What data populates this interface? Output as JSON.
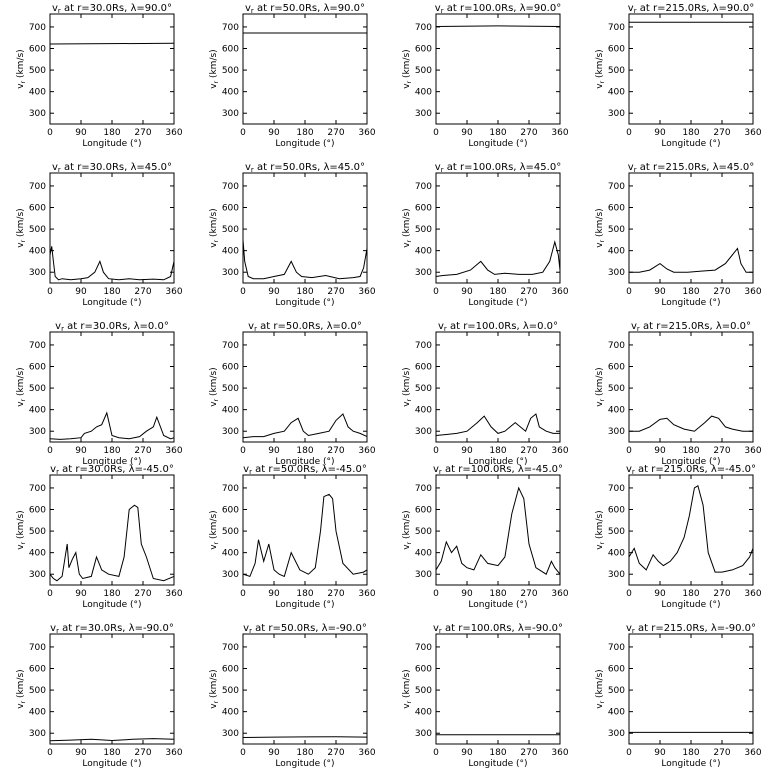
{
  "figure": {
    "panel_title_template": "v_r at r={r}Rs, λ={lat}°",
    "xlabel": "Longitude (°)",
    "ylabel": "v_r (km/s)",
    "xlim": [
      0,
      360
    ],
    "ylim": [
      250,
      760
    ],
    "xticks": [
      0,
      90,
      180,
      270,
      360
    ],
    "yticks": [
      300,
      400,
      500,
      600,
      700
    ],
    "rows_latitude_deg": [
      "90.0",
      "45.0",
      "0.0",
      "-45.0",
      "-90.0"
    ],
    "cols_radius_rs": [
      "30.0",
      "50.0",
      "100.0",
      "215.0"
    ]
  },
  "chart_data": [
    {
      "type": "line",
      "title": "vr at r=30.0Rs, λ=90.0°",
      "xlabel": "Longitude (°)",
      "ylabel": "vr (km/s)",
      "xlim": [
        0,
        360
      ],
      "ylim": [
        250,
        760
      ],
      "x": [
        0,
        360
      ],
      "y": [
        621,
        624
      ]
    },
    {
      "type": "line",
      "title": "vr at r=50.0Rs, λ=90.0°",
      "xlabel": "Longitude (°)",
      "ylabel": "vr (km/s)",
      "xlim": [
        0,
        360
      ],
      "ylim": [
        250,
        760
      ],
      "x": [
        0,
        360
      ],
      "y": [
        672,
        672
      ]
    },
    {
      "type": "line",
      "title": "vr at r=100.0Rs, λ=90.0°",
      "xlabel": "Longitude (°)",
      "ylabel": "vr (km/s)",
      "xlim": [
        0,
        360
      ],
      "ylim": [
        250,
        760
      ],
      "x": [
        0,
        180,
        360
      ],
      "y": [
        702,
        705,
        702
      ]
    },
    {
      "type": "line",
      "title": "vr at r=215.0Rs, λ=90.0°",
      "xlabel": "Longitude (°)",
      "ylabel": "vr (km/s)",
      "xlim": [
        0,
        360
      ],
      "ylim": [
        250,
        760
      ],
      "x": [
        0,
        360
      ],
      "y": [
        722,
        722
      ]
    },
    {
      "type": "line",
      "title": "vr at r=30.0Rs, λ=45.0°",
      "xlabel": "Longitude (°)",
      "ylabel": "vr (km/s)",
      "xlim": [
        0,
        360
      ],
      "ylim": [
        250,
        760
      ],
      "x": [
        0,
        5,
        10,
        15,
        25,
        35,
        60,
        90,
        110,
        130,
        145,
        155,
        170,
        200,
        230,
        260,
        300,
        330,
        350,
        360
      ],
      "y": [
        380,
        420,
        350,
        280,
        265,
        270,
        265,
        270,
        275,
        300,
        350,
        300,
        270,
        265,
        270,
        265,
        268,
        265,
        280,
        350
      ]
    },
    {
      "type": "line",
      "title": "vr at r=50.0Rs, λ=45.0°",
      "xlabel": "Longitude (°)",
      "ylabel": "vr (km/s)",
      "xlim": [
        0,
        360
      ],
      "ylim": [
        250,
        760
      ],
      "x": [
        0,
        5,
        15,
        30,
        60,
        90,
        120,
        140,
        155,
        170,
        200,
        240,
        280,
        320,
        340,
        350,
        360
      ],
      "y": [
        450,
        350,
        280,
        270,
        270,
        280,
        290,
        350,
        300,
        280,
        275,
        285,
        270,
        275,
        280,
        320,
        410
      ]
    },
    {
      "type": "line",
      "title": "vr at r=100.0Rs, λ=45.0°",
      "xlabel": "Longitude (°)",
      "ylabel": "vr (km/s)",
      "xlim": [
        0,
        360
      ],
      "ylim": [
        250,
        760
      ],
      "x": [
        0,
        20,
        60,
        100,
        130,
        150,
        170,
        200,
        240,
        280,
        310,
        330,
        345,
        355,
        360
      ],
      "y": [
        280,
        285,
        290,
        310,
        350,
        310,
        290,
        295,
        290,
        290,
        300,
        350,
        440,
        380,
        310
      ]
    },
    {
      "type": "line",
      "title": "vr at r=215.0Rs, λ=45.0°",
      "xlabel": "Longitude (°)",
      "ylabel": "vr (km/s)",
      "xlim": [
        0,
        360
      ],
      "ylim": [
        250,
        760
      ],
      "x": [
        0,
        30,
        60,
        90,
        110,
        130,
        170,
        210,
        250,
        280,
        300,
        315,
        325,
        340,
        360
      ],
      "y": [
        300,
        300,
        310,
        340,
        315,
        300,
        300,
        305,
        310,
        340,
        380,
        410,
        340,
        300,
        300
      ]
    },
    {
      "type": "line",
      "title": "vr at r=30.0Rs, λ=0.0°",
      "xlabel": "Longitude (°)",
      "ylabel": "vr (km/s)",
      "xlim": [
        0,
        360
      ],
      "ylim": [
        250,
        760
      ],
      "x": [
        0,
        30,
        60,
        90,
        100,
        120,
        135,
        150,
        165,
        180,
        200,
        230,
        260,
        280,
        300,
        310,
        330,
        350,
        360
      ],
      "y": [
        265,
        262,
        265,
        270,
        290,
        300,
        320,
        330,
        385,
        280,
        270,
        265,
        275,
        300,
        320,
        365,
        280,
        265,
        270
      ]
    },
    {
      "type": "line",
      "title": "vr at r=50.0Rs, λ=0.0°",
      "xlabel": "Longitude (°)",
      "ylabel": "vr (km/s)",
      "xlim": [
        0,
        360
      ],
      "ylim": [
        250,
        760
      ],
      "x": [
        0,
        30,
        60,
        90,
        120,
        140,
        160,
        175,
        190,
        220,
        250,
        270,
        290,
        305,
        320,
        340,
        360
      ],
      "y": [
        270,
        275,
        275,
        290,
        300,
        340,
        360,
        300,
        280,
        290,
        300,
        350,
        380,
        320,
        300,
        290,
        275
      ]
    },
    {
      "type": "line",
      "title": "vr at r=100.0Rs, λ=0.0°",
      "xlabel": "Longitude (°)",
      "ylabel": "vr (km/s)",
      "xlim": [
        0,
        360
      ],
      "ylim": [
        250,
        760
      ],
      "x": [
        0,
        30,
        60,
        90,
        120,
        140,
        160,
        180,
        200,
        230,
        260,
        275,
        290,
        300,
        320,
        340,
        360
      ],
      "y": [
        280,
        285,
        290,
        300,
        340,
        370,
        320,
        290,
        300,
        340,
        300,
        360,
        380,
        320,
        300,
        290,
        290
      ]
    },
    {
      "type": "line",
      "title": "vr at r=215.0Rs, λ=0.0°",
      "xlabel": "Longitude (°)",
      "ylabel": "vr (km/s)",
      "xlim": [
        0,
        360
      ],
      "ylim": [
        250,
        760
      ],
      "x": [
        0,
        30,
        60,
        90,
        110,
        130,
        160,
        190,
        220,
        240,
        260,
        280,
        300,
        330,
        360
      ],
      "y": [
        300,
        300,
        320,
        355,
        360,
        330,
        310,
        300,
        340,
        370,
        360,
        320,
        310,
        300,
        300
      ]
    },
    {
      "type": "line",
      "title": "vr at r=30.0Rs, λ=-45.0°",
      "xlabel": "Longitude (°)",
      "ylabel": "vr (km/s)",
      "xlim": [
        0,
        360
      ],
      "ylim": [
        250,
        760
      ],
      "x": [
        0,
        10,
        20,
        35,
        50,
        55,
        65,
        75,
        85,
        95,
        120,
        135,
        150,
        170,
        200,
        215,
        230,
        245,
        255,
        265,
        280,
        300,
        330,
        360
      ],
      "y": [
        300,
        280,
        270,
        290,
        440,
        330,
        370,
        400,
        300,
        280,
        290,
        380,
        320,
        300,
        290,
        380,
        600,
        620,
        610,
        440,
        380,
        280,
        270,
        290
      ]
    },
    {
      "type": "line",
      "title": "vr at r=50.0Rs, λ=-45.0°",
      "xlabel": "Longitude (°)",
      "ylabel": "vr (km/s)",
      "xlim": [
        0,
        360
      ],
      "ylim": [
        250,
        760
      ],
      "x": [
        0,
        20,
        35,
        45,
        60,
        75,
        90,
        105,
        120,
        140,
        165,
        190,
        210,
        225,
        235,
        250,
        260,
        270,
        290,
        320,
        350,
        360
      ],
      "y": [
        300,
        290,
        350,
        460,
        360,
        440,
        320,
        300,
        290,
        400,
        320,
        300,
        330,
        500,
        660,
        670,
        650,
        500,
        350,
        300,
        310,
        320
      ]
    },
    {
      "type": "line",
      "title": "vr at r=100.0Rs, λ=-45.0°",
      "xlabel": "Longitude (°)",
      "ylabel": "vr (km/s)",
      "xlim": [
        0,
        360
      ],
      "ylim": [
        250,
        760
      ],
      "x": [
        0,
        15,
        30,
        45,
        60,
        75,
        90,
        110,
        130,
        150,
        180,
        200,
        220,
        240,
        255,
        270,
        290,
        320,
        335,
        345,
        360
      ],
      "y": [
        320,
        360,
        450,
        400,
        430,
        350,
        330,
        320,
        390,
        350,
        340,
        380,
        580,
        700,
        650,
        440,
        330,
        300,
        360,
        330,
        300
      ]
    },
    {
      "type": "line",
      "title": "vr at r=215.0Rs, λ=-45.0°",
      "xlabel": "Longitude (°)",
      "ylabel": "vr (km/s)",
      "xlim": [
        0,
        360
      ],
      "ylim": [
        250,
        760
      ],
      "x": [
        0,
        15,
        30,
        50,
        70,
        85,
        100,
        120,
        140,
        160,
        175,
        190,
        200,
        215,
        230,
        250,
        270,
        300,
        330,
        350,
        360
      ],
      "y": [
        380,
        420,
        350,
        320,
        390,
        360,
        340,
        360,
        400,
        470,
        570,
        700,
        710,
        620,
        400,
        310,
        310,
        320,
        340,
        380,
        420
      ]
    },
    {
      "type": "line",
      "title": "vr at r=30.0Rs, λ=-90.0°",
      "xlabel": "Longitude (°)",
      "ylabel": "vr (km/s)",
      "xlim": [
        0,
        360
      ],
      "ylim": [
        250,
        760
      ],
      "x": [
        0,
        60,
        120,
        180,
        240,
        300,
        360
      ],
      "y": [
        265,
        268,
        272,
        266,
        272,
        275,
        272
      ]
    },
    {
      "type": "line",
      "title": "vr at r=50.0Rs, λ=-90.0°",
      "xlabel": "Longitude (°)",
      "ylabel": "vr (km/s)",
      "xlim": [
        0,
        360
      ],
      "ylim": [
        250,
        760
      ],
      "x": [
        0,
        90,
        180,
        270,
        360
      ],
      "y": [
        280,
        282,
        283,
        284,
        282
      ]
    },
    {
      "type": "line",
      "title": "vr at r=100.0Rs, λ=-90.0°",
      "xlabel": "Longitude (°)",
      "ylabel": "vr (km/s)",
      "xlim": [
        0,
        360
      ],
      "ylim": [
        250,
        760
      ],
      "x": [
        0,
        360
      ],
      "y": [
        293,
        293
      ]
    },
    {
      "type": "line",
      "title": "vr at r=215.0Rs, λ=-90.0°",
      "xlabel": "Longitude (°)",
      "ylabel": "vr (km/s)",
      "xlim": [
        0,
        360
      ],
      "ylim": [
        250,
        760
      ],
      "x": [
        0,
        360
      ],
      "y": [
        304,
        304
      ]
    }
  ]
}
